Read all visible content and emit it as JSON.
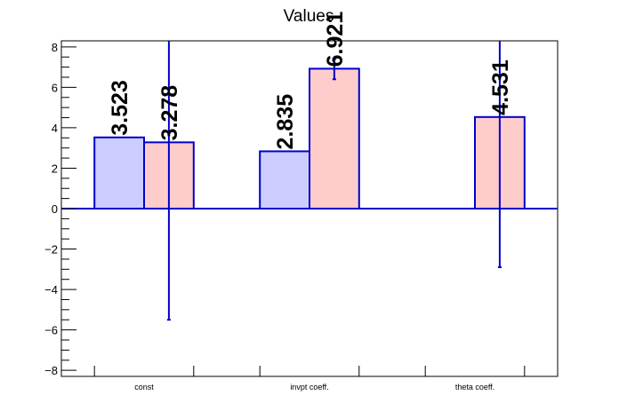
{
  "chart_data": {
    "type": "bar",
    "title": "Values",
    "xlabel": "",
    "ylabel": "",
    "ylim": [
      -8.3,
      8.3
    ],
    "yticks": [
      -8,
      -6,
      -4,
      -2,
      0,
      2,
      4,
      6,
      8
    ],
    "ytick_labels": [
      "−8",
      "−6",
      "−4",
      "−2",
      "0",
      "2",
      "4",
      "6",
      "8"
    ],
    "grid": false,
    "legend": "none",
    "categories": [
      "const",
      "invpt coeff.",
      "theta coeff."
    ],
    "series": [
      {
        "color": "#ccccff",
        "values": [
          3.523,
          2.835,
          null
        ],
        "value_labels": [
          "3.523",
          "2.835",
          ""
        ],
        "errors": [
          null,
          null,
          null
        ]
      },
      {
        "color": "#ffcccc",
        "values": [
          3.278,
          6.921,
          4.531
        ],
        "value_labels": [
          "3.278",
          "6.921",
          "4.531"
        ],
        "errors": [
          [
            -5.5,
            8.3
          ],
          [
            6.4,
            7.4
          ],
          [
            -2.9,
            8.3
          ]
        ]
      }
    ],
    "edge_color": "#0000cc"
  }
}
